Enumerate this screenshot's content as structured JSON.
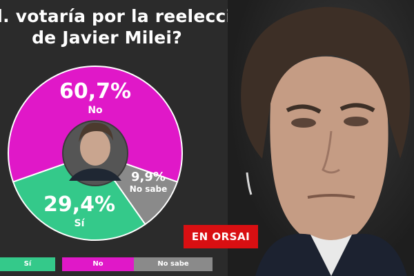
{
  "title": {
    "line1": "d. votaría por la reelección",
    "line2": "de Javier Milei?"
  },
  "colors": {
    "no": "#e018c8",
    "si": "#34c98a",
    "no_sabe": "#8a8a8a",
    "badge": "#d90f12"
  },
  "chart_data": {
    "type": "pie",
    "title": "d. votaría por la reelección de Javier Milei?",
    "slices": [
      {
        "label": "No",
        "value": 60.7,
        "display": "60,7%"
      },
      {
        "label": "No sabe",
        "value": 9.9,
        "display": "9,9%"
      },
      {
        "label": "Sí",
        "value": 29.4,
        "display": "29,4%"
      }
    ],
    "legend": [
      "Sí",
      "No",
      "No sabe"
    ],
    "legend_position": "bottom"
  },
  "legend": {
    "si": "Sí",
    "no": "No",
    "no_sabe": "No sabe"
  },
  "badge": {
    "text": "EN ORSAI"
  }
}
